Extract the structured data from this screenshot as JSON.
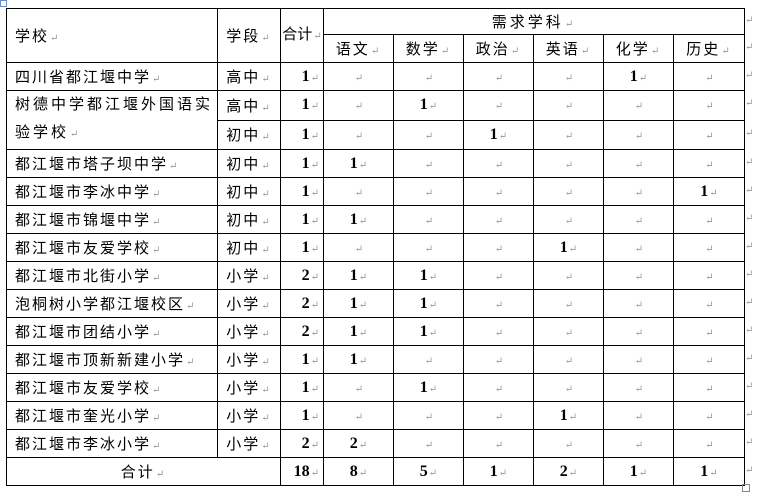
{
  "header": {
    "school": "学校",
    "stage": "学段",
    "total": "合计",
    "subjects_group": "需求学科",
    "subjects": [
      "语文",
      "数学",
      "政治",
      "英语",
      "化学",
      "历史"
    ]
  },
  "rows": [
    {
      "school": "四川省都江堰中学",
      "stage": "高中",
      "total": "1",
      "values": [
        "",
        "",
        "",
        "",
        "1",
        ""
      ]
    },
    {
      "school": "树德中学都江堰外国语实验学校",
      "stage": "高中",
      "total": "1",
      "values": [
        "",
        "1",
        "",
        "",
        "",
        ""
      ],
      "rowspan": 2
    },
    {
      "school": null,
      "stage": "初中",
      "total": "1",
      "values": [
        "",
        "",
        "1",
        "",
        "",
        ""
      ]
    },
    {
      "school": "都江堰市塔子坝中学",
      "stage": "初中",
      "total": "1",
      "values": [
        "1",
        "",
        "",
        "",
        "",
        ""
      ]
    },
    {
      "school": "都江堰市李冰中学",
      "stage": "初中",
      "total": "1",
      "values": [
        "",
        "",
        "",
        "",
        "",
        "1"
      ]
    },
    {
      "school": "都江堰市锦堰中学",
      "stage": "初中",
      "total": "1",
      "values": [
        "1",
        "",
        "",
        "",
        "",
        ""
      ]
    },
    {
      "school": "都江堰市友爱学校",
      "stage": "初中",
      "total": "1",
      "values": [
        "",
        "",
        "",
        "1",
        "",
        ""
      ]
    },
    {
      "school": "都江堰市北街小学",
      "stage": "小学",
      "total": "2",
      "values": [
        "1",
        "1",
        "",
        "",
        "",
        ""
      ]
    },
    {
      "school": "泡桐树小学都江堰校区",
      "stage": "小学",
      "total": "2",
      "values": [
        "1",
        "1",
        "",
        "",
        "",
        ""
      ]
    },
    {
      "school": "都江堰市团结小学",
      "stage": "小学",
      "total": "2",
      "values": [
        "1",
        "1",
        "",
        "",
        "",
        ""
      ]
    },
    {
      "school": "都江堰市顶新新建小学",
      "stage": "小学",
      "total": "1",
      "values": [
        "1",
        "",
        "",
        "",
        "",
        ""
      ]
    },
    {
      "school": "都江堰市友爱学校",
      "stage": "小学",
      "total": "1",
      "values": [
        "",
        "1",
        "",
        "",
        "",
        ""
      ]
    },
    {
      "school": "都江堰市奎光小学",
      "stage": "小学",
      "total": "1",
      "values": [
        "",
        "",
        "",
        "1",
        "",
        ""
      ]
    },
    {
      "school": "都江堰市李冰小学",
      "stage": "小学",
      "total": "2",
      "values": [
        "2",
        "",
        "",
        "",
        "",
        ""
      ]
    }
  ],
  "footer": {
    "label": "合计",
    "total": "18",
    "values": [
      "8",
      "5",
      "1",
      "2",
      "1",
      "1"
    ]
  }
}
